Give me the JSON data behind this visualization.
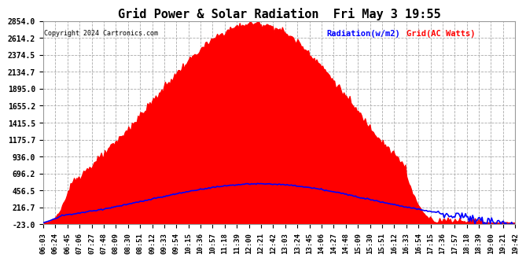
{
  "title": "Grid Power & Solar Radiation  Fri May 3 19:55",
  "copyright": "Copyright 2024 Cartronics.com",
  "legend_radiation": "Radiation(w/m2)",
  "legend_grid": "Grid(AC Watts)",
  "legend_radiation_color": "blue",
  "legend_grid_color": "red",
  "yticks": [
    2854.0,
    2614.2,
    2374.5,
    2134.7,
    1895.0,
    1655.2,
    1415.5,
    1175.7,
    936.0,
    696.2,
    456.5,
    216.7,
    -23.0
  ],
  "ymin": -23.0,
  "ymax": 2854.0,
  "background_color": "#ffffff",
  "plot_bg_color": "#ffffff",
  "grid_color": "#aaaaaa",
  "fill_color": "#ff0000",
  "line_color": "#0000ff",
  "xtick_labels": [
    "06:03",
    "06:24",
    "06:45",
    "07:06",
    "07:27",
    "07:48",
    "08:09",
    "08:30",
    "08:51",
    "09:12",
    "09:33",
    "09:54",
    "10:15",
    "10:36",
    "10:57",
    "11:18",
    "11:39",
    "12:00",
    "12:21",
    "12:42",
    "13:03",
    "13:24",
    "13:45",
    "14:06",
    "14:27",
    "14:48",
    "15:09",
    "15:30",
    "15:51",
    "16:12",
    "16:33",
    "16:54",
    "17:15",
    "17:36",
    "17:57",
    "18:18",
    "18:39",
    "19:00",
    "19:21",
    "19:42"
  ]
}
